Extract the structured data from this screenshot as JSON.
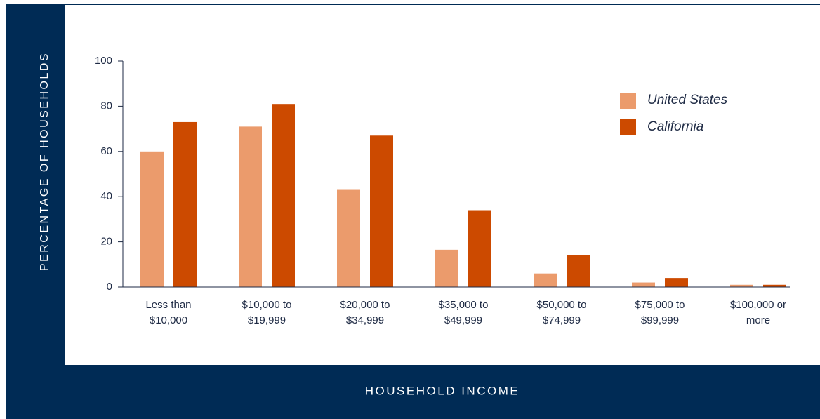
{
  "chart_data": {
    "type": "bar",
    "xlabel": "HOUSEHOLD INCOME",
    "ylabel": "PERCENTAGE OF HOUSEHOLDS",
    "categories": [
      "Less than\n$10,000",
      "$10,000 to\n$19,999",
      "$20,000 to\n$34,999",
      "$35,000 to\n$49,999",
      "$50,000 to\n$74,999",
      "$75,000 to\n$99,999",
      "$100,000 or\nmore"
    ],
    "series": [
      {
        "name": "United States",
        "color": "#eb9b6c",
        "values": [
          60,
          71,
          43,
          16.5,
          6,
          2,
          1
        ]
      },
      {
        "name": "California",
        "color": "#cc4a00",
        "values": [
          73,
          81,
          67,
          34,
          14,
          4,
          1
        ]
      }
    ],
    "ylim": [
      0,
      100
    ],
    "yticks": [
      0,
      20,
      40,
      60,
      80,
      100
    ],
    "grid": false,
    "legend": "upper right"
  }
}
